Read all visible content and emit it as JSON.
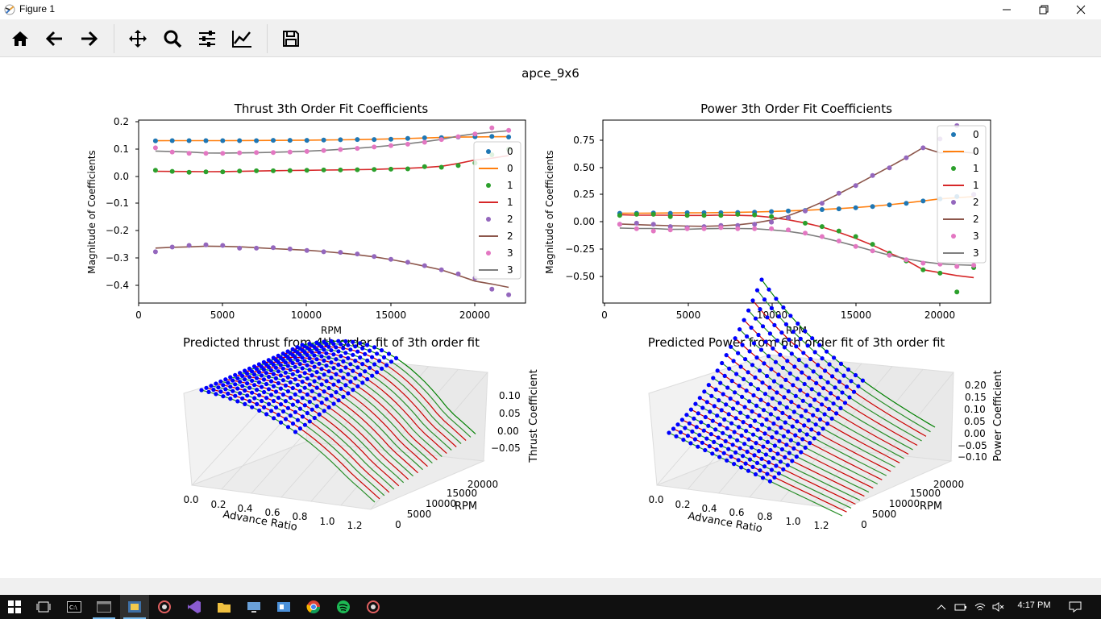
{
  "window": {
    "title": "Figure 1"
  },
  "toolbar": {
    "buttons": [
      "home-icon",
      "back-arrow-icon",
      "forward-arrow-icon",
      "pan-icon",
      "zoom-icon",
      "configure-subplots-icon",
      "edit-axis-icon",
      "save-icon"
    ]
  },
  "figure": {
    "suptitle": "apce_9x6",
    "thrust_coeff": {
      "title": "Thrust 3th Order Fit Coefficients",
      "xlabel": "RPM",
      "ylabel": "Magnitude of Coefficients",
      "xticks": [
        "0",
        "5000",
        "10000",
        "15000",
        "20000"
      ],
      "yticks": [
        "0.2",
        "0.1",
        "0.0",
        "−0.1",
        "−0.2",
        "−0.3",
        "−0.4"
      ],
      "legend": [
        "0",
        "0",
        "1",
        "1",
        "2",
        "2",
        "3",
        "3"
      ]
    },
    "power_coeff": {
      "title": "Power 3th Order Fit Coefficients",
      "xlabel": "RPM",
      "ylabel": "Magnitude of Coefficients",
      "xticks": [
        "0",
        "5000",
        "10000",
        "15000",
        "20000"
      ],
      "yticks": [
        "0.75",
        "0.50",
        "0.25",
        "0.00",
        "−0.25",
        "−0.50"
      ],
      "legend": [
        "0",
        "0",
        "1",
        "1",
        "2",
        "2",
        "3",
        "3"
      ]
    },
    "thrust_3d": {
      "title": "Predicted thrust from 4th order fit of 3th order fit",
      "xlabel": "Advance Ratio",
      "ylabel": "RPM",
      "zlabel": "Thrust Coefficient",
      "xticks": [
        "0.0",
        "0.2",
        "0.4",
        "0.6",
        "0.8",
        "1.0",
        "1.2"
      ],
      "yticks": [
        "0",
        "5000",
        "10000",
        "15000",
        "20000"
      ],
      "zticks": [
        "0.10",
        "0.05",
        "0.00",
        "−0.05"
      ]
    },
    "power_3d": {
      "title": "Predicted Power from 6th order fit of 3th order fit",
      "xlabel": "Advance Ratio",
      "ylabel": "RPM",
      "zlabel": "Power Coefficient",
      "xticks": [
        "0.0",
        "0.2",
        "0.4",
        "0.6",
        "0.8",
        "1.0",
        "1.2"
      ],
      "yticks": [
        "0",
        "5000",
        "10000",
        "15000",
        "20000"
      ],
      "zticks": [
        "0.20",
        "0.15",
        "0.10",
        "0.05",
        "0.00",
        "−0.05",
        "−0.10"
      ]
    }
  },
  "chart_data": [
    {
      "type": "scatter",
      "title": "Thrust 3th Order Fit Coefficients",
      "xlabel": "RPM",
      "ylabel": "Magnitude of Coefficients",
      "xlim": [
        0,
        23000
      ],
      "ylim": [
        -0.46,
        0.2
      ],
      "x": [
        1000,
        2000,
        3000,
        4000,
        5000,
        6000,
        7000,
        8000,
        9000,
        10000,
        11000,
        12000,
        13000,
        14000,
        15000,
        16000,
        17000,
        18000,
        19000,
        20000,
        21000,
        22000
      ],
      "series": [
        {
          "name": "0",
          "color": "#1f77b4",
          "fit_color": "#ff7f0e",
          "values": [
            0.125,
            0.126,
            0.126,
            0.126,
            0.126,
            0.126,
            0.126,
            0.127,
            0.127,
            0.127,
            0.128,
            0.129,
            0.13,
            0.13,
            0.131,
            0.134,
            0.136,
            0.137,
            0.139,
            0.14,
            0.141,
            0.139
          ]
        },
        {
          "name": "1",
          "color": "#2ca02c",
          "fit_color": "#d62728",
          "values": [
            0.019,
            0.015,
            0.012,
            0.013,
            0.013,
            0.016,
            0.017,
            0.017,
            0.018,
            0.019,
            0.02,
            0.02,
            0.021,
            0.022,
            0.023,
            0.024,
            0.032,
            0.03,
            0.036,
            0.045,
            0.075,
            0.095
          ]
        },
        {
          "name": "2",
          "color": "#9467bd",
          "fit_color": "#8c564b",
          "values": [
            -0.275,
            -0.258,
            -0.252,
            -0.25,
            -0.252,
            -0.262,
            -0.262,
            -0.26,
            -0.265,
            -0.27,
            -0.275,
            -0.277,
            -0.283,
            -0.292,
            -0.302,
            -0.313,
            -0.325,
            -0.34,
            -0.355,
            -0.37,
            -0.41,
            -0.43
          ]
        },
        {
          "name": "3",
          "color": "#e377c2",
          "fit_color": "#7f7f7f",
          "values": [
            0.1,
            0.085,
            0.08,
            0.08,
            0.08,
            0.082,
            0.083,
            0.083,
            0.085,
            0.087,
            0.09,
            0.094,
            0.098,
            0.103,
            0.108,
            0.113,
            0.12,
            0.13,
            0.14,
            0.15,
            0.172,
            0.163
          ]
        }
      ]
    },
    {
      "type": "scatter",
      "title": "Power 3th Order Fit Coefficients",
      "xlabel": "RPM",
      "ylabel": "Magnitude of Coefficients",
      "xlim": [
        0,
        23000
      ],
      "ylim": [
        -0.75,
        0.9
      ],
      "x": [
        1000,
        2000,
        3000,
        4000,
        5000,
        6000,
        7000,
        8000,
        9000,
        10000,
        11000,
        12000,
        13000,
        14000,
        15000,
        16000,
        17000,
        18000,
        19000,
        20000,
        21000,
        22000
      ],
      "series": [
        {
          "name": "0",
          "color": "#1f77b4",
          "fit_color": "#ff7f0e",
          "values": [
            0.06,
            0.06,
            0.062,
            0.06,
            0.065,
            0.065,
            0.065,
            0.067,
            0.07,
            0.075,
            0.08,
            0.085,
            0.093,
            0.1,
            0.11,
            0.12,
            0.135,
            0.15,
            0.17,
            0.19,
            0.21,
            0.23
          ]
        },
        {
          "name": "1",
          "color": "#2ca02c",
          "fit_color": "#d62728",
          "values": [
            0.04,
            0.05,
            0.05,
            0.03,
            0.04,
            0.04,
            0.04,
            0.05,
            0.045,
            0.03,
            0.02,
            -0.03,
            -0.06,
            -0.1,
            -0.15,
            -0.22,
            -0.3,
            -0.37,
            -0.45,
            -0.48,
            -0.65,
            -0.43
          ]
        },
        {
          "name": "2",
          "color": "#9467bd",
          "fit_color": "#8c564b",
          "values": [
            -0.04,
            -0.03,
            -0.04,
            -0.06,
            -0.07,
            -0.06,
            -0.05,
            -0.05,
            -0.04,
            -0.02,
            0.02,
            0.08,
            0.15,
            0.24,
            0.31,
            0.4,
            0.47,
            0.56,
            0.65,
            0.73,
            0.85,
            0.23
          ]
        },
        {
          "name": "3",
          "color": "#e377c2",
          "fit_color": "#7f7f7f",
          "values": [
            -0.04,
            -0.08,
            -0.1,
            -0.09,
            -0.08,
            -0.08,
            -0.07,
            -0.08,
            -0.08,
            -0.08,
            -0.09,
            -0.12,
            -0.15,
            -0.19,
            -0.24,
            -0.28,
            -0.32,
            -0.36,
            -0.39,
            -0.4,
            -0.42,
            -0.41
          ]
        }
      ]
    }
  ],
  "taskbar": {
    "apps": [
      "start-icon",
      "task-view-icon",
      "cmd-icon",
      "terminal-icon",
      "python-icon",
      "gear-app-icon",
      "visual-studio-icon",
      "file-explorer-icon",
      "remote-desktop-icon",
      "control-panel-icon",
      "chrome-icon",
      "spotify-icon",
      "gear-app-2-icon"
    ],
    "time": "4:17 PM"
  }
}
